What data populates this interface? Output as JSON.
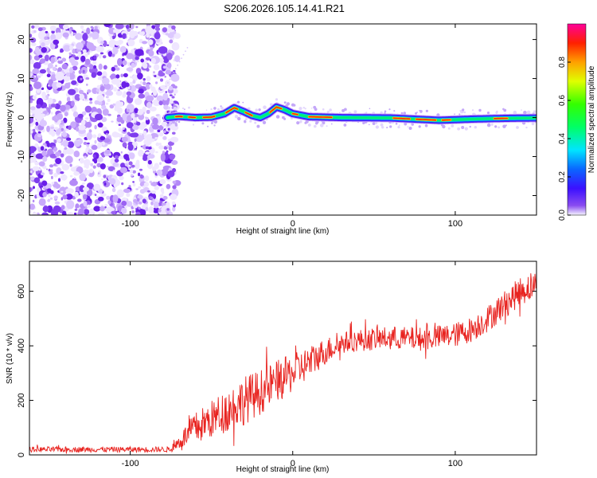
{
  "title": "S206.2026.105.14.41.R21",
  "colors": {
    "snr_line": "#e8231f",
    "noise": "#8a3df2",
    "axis": "#000000"
  },
  "chart_data": [
    {
      "type": "heatmap",
      "name": "spectrogram",
      "xlabel": "Height of straight line (km)",
      "ylabel": "Frequency (Hz)",
      "xlim": [
        -162,
        150
      ],
      "ylim": [
        -25,
        24
      ],
      "xticks": [
        -100,
        0,
        100
      ],
      "yticks": [
        -20,
        -10,
        0,
        10,
        20
      ],
      "noise_region_x": [
        -162,
        -73
      ],
      "track_start_x": -77,
      "track": [
        {
          "x": -77,
          "f": 0.0
        },
        {
          "x": -70,
          "f": 0.3
        },
        {
          "x": -60,
          "f": 0.0
        },
        {
          "x": -50,
          "f": 0.1
        },
        {
          "x": -42,
          "f": 1.0
        },
        {
          "x": -36,
          "f": 2.5
        },
        {
          "x": -30,
          "f": 1.5
        },
        {
          "x": -25,
          "f": 0.5
        },
        {
          "x": -20,
          "f": 0.0
        },
        {
          "x": -15,
          "f": 1.0
        },
        {
          "x": -10,
          "f": 2.7
        },
        {
          "x": -5,
          "f": 2.0
        },
        {
          "x": 0,
          "f": 1.0
        },
        {
          "x": 10,
          "f": 0.2
        },
        {
          "x": 30,
          "f": 0.0
        },
        {
          "x": 60,
          "f": -0.1
        },
        {
          "x": 80,
          "f": -0.5
        },
        {
          "x": 90,
          "f": -0.7
        },
        {
          "x": 110,
          "f": -0.4
        },
        {
          "x": 130,
          "f": -0.2
        },
        {
          "x": 150,
          "f": -0.1
        }
      ],
      "colorbar": {
        "label": "Normalized spectral amplitude",
        "range": [
          0,
          1
        ],
        "ticks": [
          0.0,
          0.2,
          0.4,
          0.6,
          0.8
        ],
        "tick_labels": [
          "0.0",
          "0.2",
          "0.4",
          "0.6",
          "0.8"
        ]
      }
    },
    {
      "type": "line",
      "name": "snr",
      "xlabel": "Height of straight line (km)",
      "ylabel": "SNR (10 * v/v)",
      "xlim": [
        -162,
        150
      ],
      "ylim": [
        0,
        710
      ],
      "xticks": [
        -100,
        0,
        100
      ],
      "yticks": [
        0,
        200,
        400,
        600
      ],
      "trend": [
        {
          "x": -162,
          "y": 20
        },
        {
          "x": -75,
          "y": 20
        },
        {
          "x": -62,
          "y": 90
        },
        {
          "x": -50,
          "y": 130
        },
        {
          "x": -30,
          "y": 200
        },
        {
          "x": -20,
          "y": 230
        },
        {
          "x": -10,
          "y": 270
        },
        {
          "x": 0,
          "y": 300
        },
        {
          "x": 10,
          "y": 340
        },
        {
          "x": 20,
          "y": 380
        },
        {
          "x": 30,
          "y": 410
        },
        {
          "x": 40,
          "y": 420
        },
        {
          "x": 60,
          "y": 430
        },
        {
          "x": 80,
          "y": 425
        },
        {
          "x": 100,
          "y": 440
        },
        {
          "x": 110,
          "y": 460
        },
        {
          "x": 120,
          "y": 500
        },
        {
          "x": 130,
          "y": 550
        },
        {
          "x": 140,
          "y": 600
        },
        {
          "x": 150,
          "y": 630
        }
      ],
      "noise_amplitude": [
        {
          "x": -162,
          "a": 10
        },
        {
          "x": -75,
          "a": 10
        },
        {
          "x": -60,
          "a": 60
        },
        {
          "x": -30,
          "a": 90
        },
        {
          "x": 0,
          "a": 70
        },
        {
          "x": 30,
          "a": 40
        },
        {
          "x": 100,
          "a": 45
        },
        {
          "x": 150,
          "a": 55
        }
      ]
    }
  ]
}
